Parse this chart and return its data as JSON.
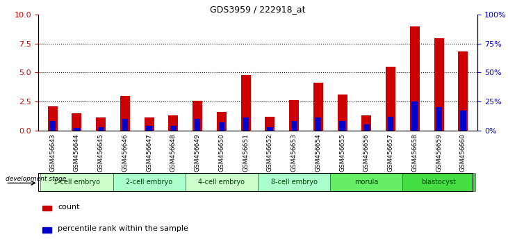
{
  "title": "GDS3959 / 222918_at",
  "samples": [
    "GSM456643",
    "GSM456644",
    "GSM456645",
    "GSM456646",
    "GSM456647",
    "GSM456648",
    "GSM456649",
    "GSM456650",
    "GSM456651",
    "GSM456652",
    "GSM456653",
    "GSM456654",
    "GSM456655",
    "GSM456656",
    "GSM456657",
    "GSM456658",
    "GSM456659",
    "GSM456660"
  ],
  "counts": [
    2.1,
    1.5,
    1.1,
    3.0,
    1.1,
    1.3,
    2.55,
    1.6,
    4.8,
    1.2,
    2.6,
    4.1,
    3.1,
    1.3,
    5.5,
    9.0,
    8.0,
    6.8
  ],
  "percentile_ranks": [
    8,
    2,
    3,
    10,
    4,
    4,
    10,
    7,
    11,
    3,
    8,
    11,
    8,
    5,
    12,
    25,
    20,
    17
  ],
  "stages": [
    {
      "label": "1-cell embryo",
      "start": 0,
      "end": 3
    },
    {
      "label": "2-cell embryo",
      "start": 3,
      "end": 6
    },
    {
      "label": "4-cell embryo",
      "start": 6,
      "end": 9
    },
    {
      "label": "8-cell embryo",
      "start": 9,
      "end": 12
    },
    {
      "label": "morula",
      "start": 12,
      "end": 15
    },
    {
      "label": "blastocyst",
      "start": 15,
      "end": 18
    }
  ],
  "stage_colors": [
    "#ccffcc",
    "#aaffcc",
    "#ccffcc",
    "#aaffcc",
    "#66ee66",
    "#44dd44"
  ],
  "ylim_left": [
    0,
    10
  ],
  "ylim_right": [
    0,
    100
  ],
  "yticks_left": [
    0,
    2.5,
    5.0,
    7.5,
    10
  ],
  "yticks_right": [
    0,
    25,
    50,
    75,
    100
  ],
  "bar_color": "#cc0000",
  "pct_color": "#0000cc",
  "legend_count": "count",
  "legend_pct": "percentile rank within the sample",
  "bar_width": 0.4,
  "pct_bar_width": 0.25,
  "background_color": "#ffffff",
  "grid_color": "#000000",
  "tick_gray_bg": "#cccccc"
}
